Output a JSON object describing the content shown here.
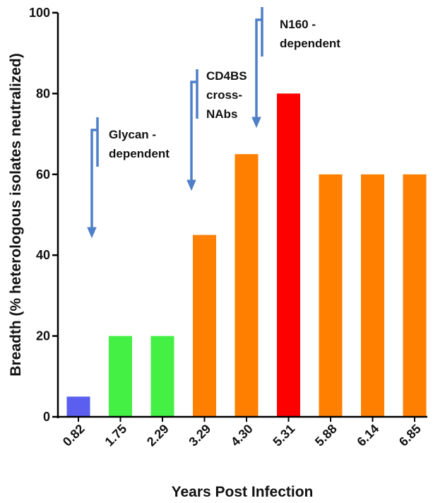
{
  "chart_data": {
    "type": "bar",
    "categories": [
      "0.82",
      "1.75",
      "2.29",
      "3.29",
      "4.30",
      "5.31",
      "5.88",
      "6.14",
      "6.85"
    ],
    "values": [
      5,
      20,
      20,
      45,
      65,
      80,
      60,
      60,
      60
    ],
    "bar_colors": [
      "#5a5ff0",
      "#44f044",
      "#44f044",
      "#ff8000",
      "#ff8000",
      "#ff0000",
      "#ff8000",
      "#ff8000",
      "#ff8000"
    ],
    "xlabel": "Years Post Infection",
    "ylabel": "Breadth (% heterologous isolates neutralized)",
    "ylim": [
      0,
      100
    ],
    "yticks": [
      "0",
      "20",
      "40",
      "60",
      "80",
      "100"
    ],
    "grid": false,
    "annotations": [
      {
        "lines": [
          "Glycan -",
          "dependent"
        ],
        "target_category": "0.82",
        "color": "#4f7fc9"
      },
      {
        "lines": [
          "CD4BS",
          "cross-",
          "NAbs"
        ],
        "target_category": "3.29",
        "color": "#4f7fc9"
      },
      {
        "lines": [
          "N160 -",
          "dependent"
        ],
        "target_category": "5.31",
        "color": "#4f7fc9"
      }
    ]
  }
}
